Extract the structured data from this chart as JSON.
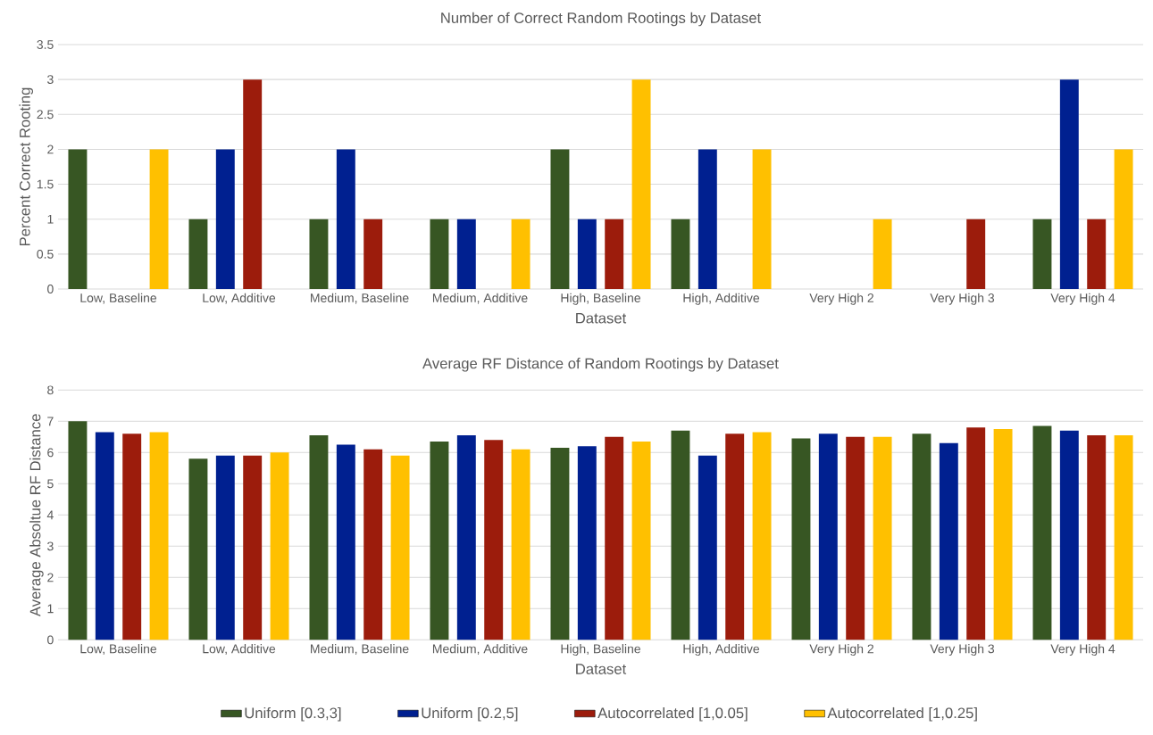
{
  "chart_data": [
    {
      "type": "bar",
      "title": "Number of  Correct Random Rootings by Dataset",
      "xlabel": "Dataset",
      "ylabel": "Percent Correct Rooting",
      "categories": [
        "Low, Baseline",
        "Low, Additive",
        "Medium, Baseline",
        "Medium, Additive",
        "High, Baseline",
        "High, Additive",
        "Very High 2",
        "Very High 3",
        "Very High 4"
      ],
      "series": [
        {
          "color": "#375623",
          "values": [
            2,
            1,
            1,
            1,
            2,
            1,
            0,
            0,
            1
          ]
        },
        {
          "color": "#002090",
          "values": [
            0,
            2,
            2,
            1,
            1,
            2,
            0,
            0,
            3
          ]
        },
        {
          "color": "#9c1c0c",
          "values": [
            0,
            3,
            1,
            0,
            1,
            0,
            0,
            1,
            1
          ]
        },
        {
          "color": "#ffc000",
          "values": [
            2,
            0,
            0,
            1,
            3,
            2,
            1,
            0,
            2
          ]
        }
      ],
      "ylim": [
        0,
        3.5
      ],
      "yticks": [
        0,
        0.5,
        1,
        1.5,
        2,
        2.5,
        3,
        3.5
      ],
      "grid": "y"
    },
    {
      "type": "bar",
      "title": "Average RF Distance of Random Rootings by Dataset",
      "xlabel": "Dataset",
      "ylabel": "Average Absoltue RF Distance",
      "categories": [
        "Low, Baseline",
        "Low, Additive",
        "Medium, Baseline",
        "Medium, Additive",
        "High, Baseline",
        "High, Additive",
        "Very High 2",
        "Very High 3",
        "Very High 4"
      ],
      "series": [
        {
          "name": "Uniform [0.3,3]",
          "color": "#375623",
          "values": [
            7.0,
            5.8,
            6.55,
            6.35,
            6.15,
            6.7,
            6.45,
            6.6,
            6.85
          ]
        },
        {
          "name": "Uniform [0.2,5]",
          "color": "#002090",
          "values": [
            6.65,
            5.9,
            6.25,
            6.55,
            6.2,
            5.9,
            6.6,
            6.3,
            6.7
          ]
        },
        {
          "name": "Autocorrelated [1,0.05]",
          "color": "#9c1c0c",
          "values": [
            6.6,
            5.9,
            6.1,
            6.4,
            6.5,
            6.6,
            6.5,
            6.8,
            6.55
          ]
        },
        {
          "name": "Autocorrelated [1,0.25]",
          "color": "#ffc000",
          "values": [
            6.65,
            6.0,
            5.9,
            6.1,
            6.35,
            6.65,
            6.5,
            6.75,
            6.55
          ]
        }
      ],
      "ylim": [
        0,
        8
      ],
      "yticks": [
        0,
        1,
        2,
        3,
        4,
        5,
        6,
        7,
        8
      ],
      "grid": "y",
      "legend": "bottom"
    }
  ]
}
